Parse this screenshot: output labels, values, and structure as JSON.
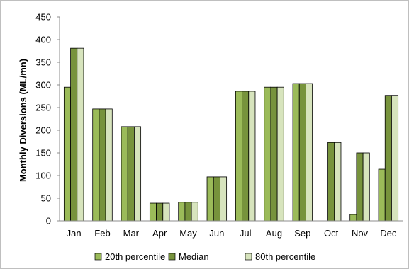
{
  "chart_data": {
    "type": "bar",
    "title": "",
    "xlabel": "",
    "ylabel": "Monthly Diversions (ML/mn)",
    "ylim": [
      0,
      450
    ],
    "yticks": [
      0,
      50,
      100,
      150,
      200,
      250,
      300,
      350,
      400,
      450
    ],
    "grid": false,
    "legend_position": "bottom",
    "categories": [
      "Jan",
      "Feb",
      "Mar",
      "Apr",
      "May",
      "Jun",
      "Jul",
      "Aug",
      "Sep",
      "Oct",
      "Nov",
      "Dec"
    ],
    "series": [
      {
        "name": "20th percentile",
        "color": "#9bbb59",
        "values": [
          295,
          247,
          208,
          39,
          41,
          97,
          286,
          295,
          303,
          0,
          14,
          114
        ]
      },
      {
        "name": "Median",
        "color": "#77933c",
        "values": [
          381,
          247,
          208,
          39,
          41,
          97,
          286,
          295,
          303,
          173,
          150,
          277
        ]
      },
      {
        "name": "80th percentile",
        "color": "#d7e4bd",
        "values": [
          381,
          247,
          208,
          39,
          41,
          97,
          286,
          295,
          303,
          173,
          150,
          277
        ]
      }
    ]
  }
}
